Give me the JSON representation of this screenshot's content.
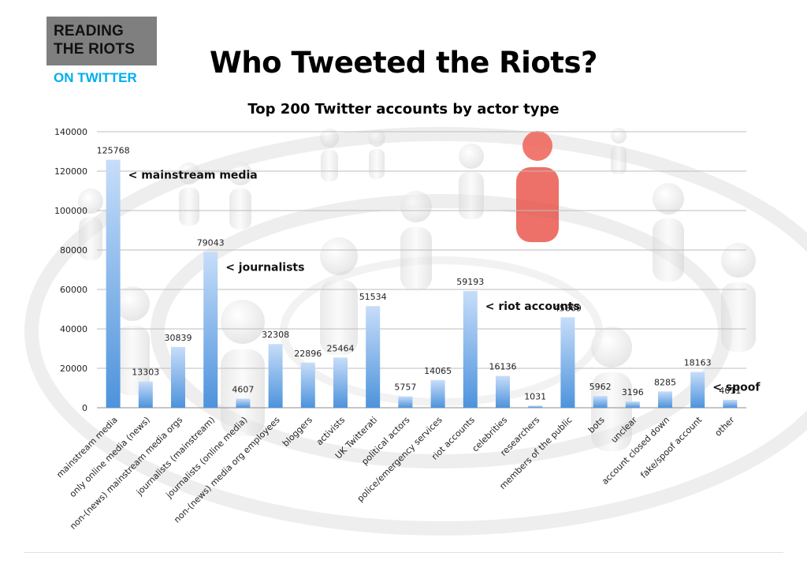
{
  "logo": {
    "line1": "READING",
    "line2": "THE RIOTS",
    "line3": "ON TWITTER"
  },
  "title": "Who Tweeted the Riots?",
  "colors": {
    "bar_top": "#c7ddf9",
    "bar_bottom": "#4d93dc",
    "grid": "#bdbdbd",
    "accent_red": "#e8463b"
  },
  "chart_data": {
    "type": "bar",
    "title": "Top 200 Twitter accounts by actor type",
    "xlabel": "",
    "ylabel": "",
    "ylim": [
      0,
      140000
    ],
    "yticks": [
      0,
      20000,
      40000,
      60000,
      80000,
      100000,
      120000,
      140000
    ],
    "grid": true,
    "categories": [
      "mainstream media",
      "only online media (news)",
      "non-(news) mainstream media orgs",
      "journalists (mainstream)",
      "journalists (online media)",
      "non-(news) media org employees",
      "bloggers",
      "activists",
      "UK Twitterati",
      "political actors",
      "police/emergency services",
      "riot accounts",
      "celebrities",
      "researchers",
      "members of the public",
      "bots",
      "unclear",
      "account closed down",
      "fake/spoof account",
      "other"
    ],
    "values": [
      125768,
      13303,
      30839,
      79043,
      4607,
      32308,
      22896,
      25464,
      51534,
      5757,
      14065,
      59193,
      16136,
      1031,
      45869,
      5962,
      3196,
      8285,
      18163,
      4011
    ],
    "annotations": [
      {
        "category": "mainstream media",
        "text": "< mainstream media"
      },
      {
        "category": "journalists (mainstream)",
        "text": "< journalists"
      },
      {
        "category": "riot accounts",
        "text": "< riot accounts"
      },
      {
        "category": "fake/spoof account",
        "text": "< spoof"
      }
    ]
  }
}
